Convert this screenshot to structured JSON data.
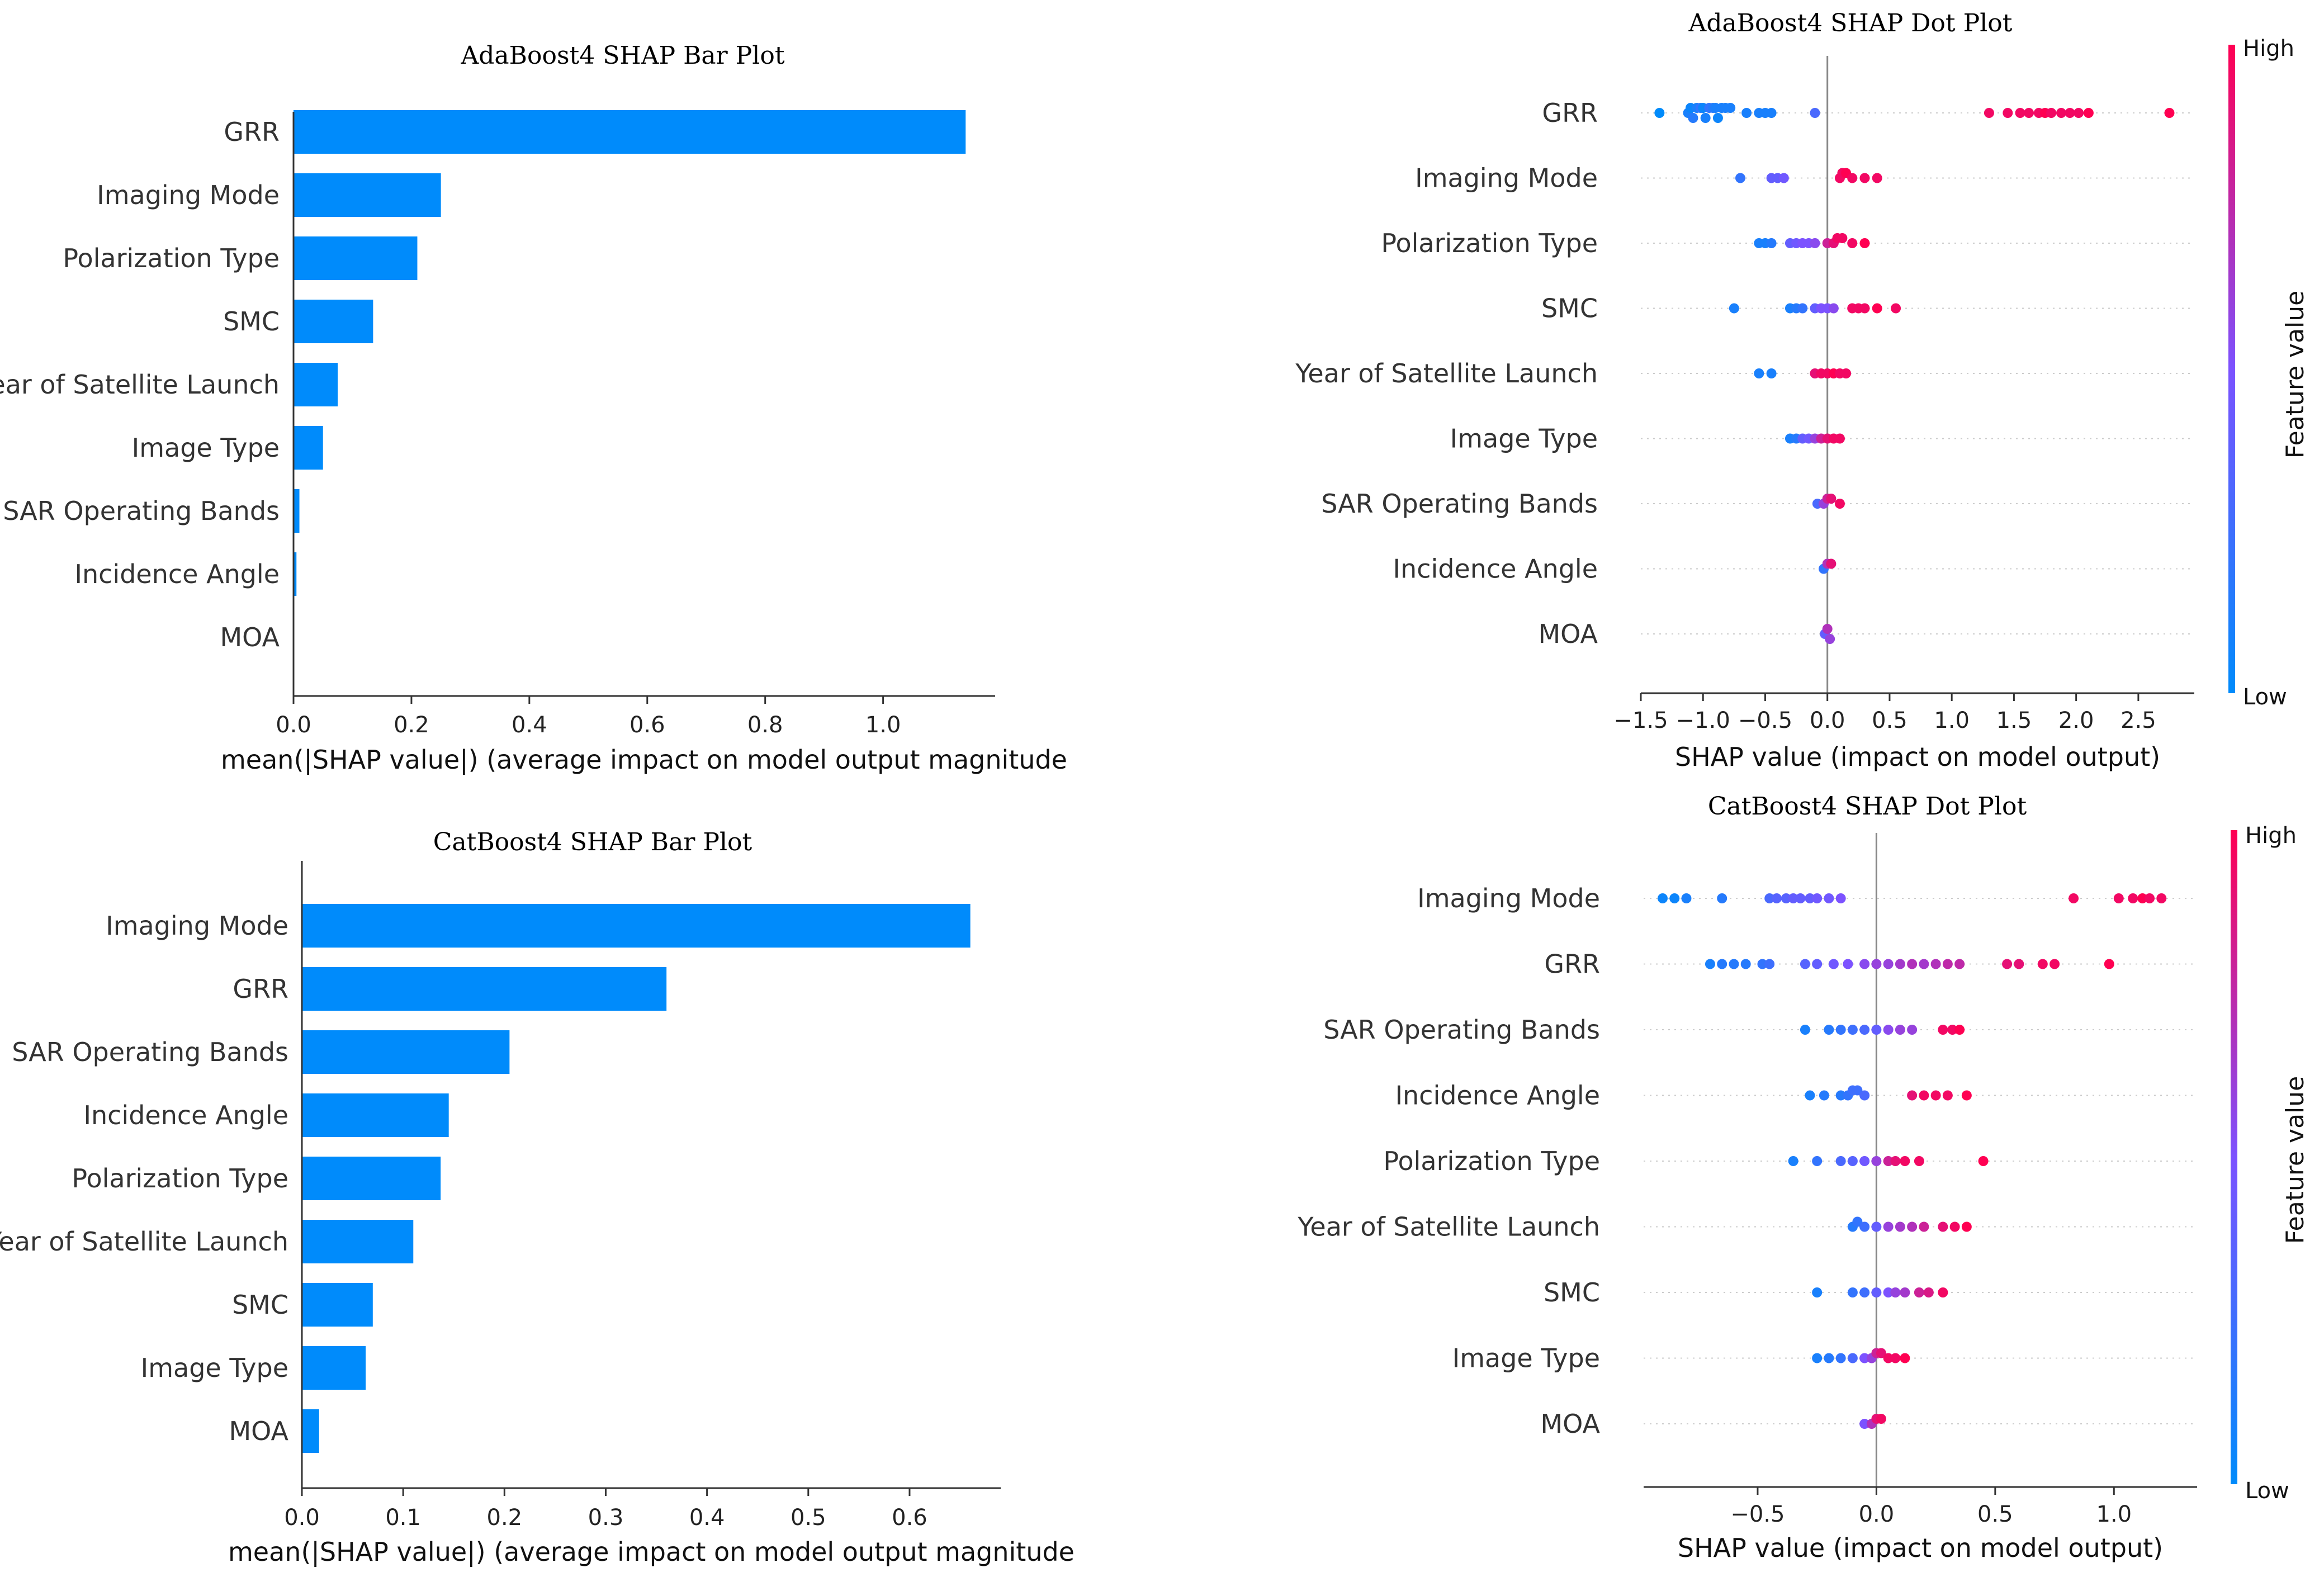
{
  "chart_data": [
    {
      "type": "bar",
      "title": "AdaBoost4 SHAP Bar Plot",
      "xlabel": "mean(|SHAP value|) (average impact on model output magnitude",
      "ylabel": "",
      "xlim": [
        0,
        1.19
      ],
      "xticks": [
        0.0,
        0.2,
        0.4,
        0.6,
        0.8,
        1.0
      ],
      "xtick_labels": [
        "0.0",
        "0.2",
        "0.4",
        "0.6",
        "0.8",
        "1.0"
      ],
      "categories": [
        "GRR",
        "Imaging Mode",
        "Polarization Type",
        "SMC",
        "Year of Satellite Launch",
        "Image Type",
        "SAR Operating Bands",
        "Incidence Angle",
        "MOA"
      ],
      "values": [
        1.14,
        0.25,
        0.21,
        0.135,
        0.075,
        0.05,
        0.01,
        0.005,
        0.0
      ],
      "bar_color": "#008bfb"
    },
    {
      "type": "scatter",
      "subtype": "beeswarm",
      "title": "AdaBoost4 SHAP Dot Plot",
      "xlabel": "SHAP value (impact on model output)",
      "xlim": [
        -1.5,
        2.95
      ],
      "xticks": [
        -1.5,
        -1.0,
        -0.5,
        0.0,
        0.5,
        1.0,
        1.5,
        2.0,
        2.5
      ],
      "xtick_labels": [
        "−1.5",
        "−1.0",
        "−0.5",
        "0.0",
        "0.5",
        "1.0",
        "1.5",
        "2.0",
        "2.5"
      ],
      "categories": [
        "GRR",
        "Imaging Mode",
        "Polarization Type",
        "SMC",
        "Year of Satellite Launch",
        "Image Type",
        "SAR Operating Bands",
        "Incidence Angle",
        "MOA"
      ],
      "series": [
        {
          "name": "GRR",
          "points": [
            [
              -1.35,
              0.0
            ],
            [
              -1.12,
              0.1
            ],
            [
              -1.1,
              0.05
            ],
            [
              -1.08,
              0.15
            ],
            [
              -1.05,
              0.1
            ],
            [
              -1.02,
              0.2
            ],
            [
              -1.0,
              0.05
            ],
            [
              -0.98,
              0.1
            ],
            [
              -0.95,
              0.2
            ],
            [
              -0.92,
              0.15
            ],
            [
              -0.9,
              0.1
            ],
            [
              -0.88,
              0.05
            ],
            [
              -0.85,
              0.1
            ],
            [
              -0.82,
              0.1
            ],
            [
              -0.78,
              0.1
            ],
            [
              -0.65,
              0.1
            ],
            [
              -0.55,
              0.1
            ],
            [
              -0.5,
              0.1
            ],
            [
              -0.45,
              0.1
            ],
            [
              -0.1,
              0.3
            ],
            [
              1.3,
              0.95
            ],
            [
              1.45,
              0.95
            ],
            [
              1.55,
              0.95
            ],
            [
              1.62,
              0.95
            ],
            [
              1.7,
              0.95
            ],
            [
              1.75,
              1.0
            ],
            [
              1.8,
              0.95
            ],
            [
              1.88,
              0.95
            ],
            [
              1.95,
              0.95
            ],
            [
              2.02,
              0.95
            ],
            [
              2.1,
              1.0
            ],
            [
              2.75,
              1.0
            ]
          ]
        },
        {
          "name": "Imaging Mode",
          "points": [
            [
              -0.7,
              0.2
            ],
            [
              -0.45,
              0.4
            ],
            [
              -0.4,
              0.4
            ],
            [
              -0.35,
              0.45
            ],
            [
              0.1,
              0.95
            ],
            [
              0.12,
              0.95
            ],
            [
              0.15,
              1.0
            ],
            [
              0.2,
              0.95
            ],
            [
              0.3,
              0.95
            ],
            [
              0.4,
              0.95
            ]
          ]
        },
        {
          "name": "Polarization Type",
          "points": [
            [
              -0.55,
              0.1
            ],
            [
              -0.5,
              0.1
            ],
            [
              -0.45,
              0.15
            ],
            [
              -0.3,
              0.4
            ],
            [
              -0.25,
              0.45
            ],
            [
              -0.2,
              0.5
            ],
            [
              -0.15,
              0.5
            ],
            [
              -0.1,
              0.55
            ],
            [
              0.0,
              0.8
            ],
            [
              0.05,
              0.9
            ],
            [
              0.08,
              0.95
            ],
            [
              0.12,
              0.95
            ],
            [
              0.2,
              0.95
            ],
            [
              0.3,
              1.0
            ]
          ]
        },
        {
          "name": "SMC",
          "points": [
            [
              -0.75,
              0.1
            ],
            [
              -0.3,
              0.1
            ],
            [
              -0.25,
              0.15
            ],
            [
              -0.2,
              0.2
            ],
            [
              -0.1,
              0.4
            ],
            [
              -0.05,
              0.5
            ],
            [
              0.0,
              0.5
            ],
            [
              0.05,
              0.55
            ],
            [
              0.2,
              0.95
            ],
            [
              0.25,
              0.95
            ],
            [
              0.3,
              0.95
            ],
            [
              0.4,
              1.0
            ],
            [
              0.55,
              0.95
            ]
          ]
        },
        {
          "name": "Year of Satellite Launch",
          "points": [
            [
              -0.55,
              0.1
            ],
            [
              -0.45,
              0.1
            ],
            [
              -0.1,
              0.9
            ],
            [
              -0.05,
              0.95
            ],
            [
              0.0,
              0.95
            ],
            [
              0.05,
              1.0
            ],
            [
              0.1,
              0.95
            ],
            [
              0.15,
              0.95
            ]
          ]
        },
        {
          "name": "Image Type",
          "points": [
            [
              -0.3,
              0.1
            ],
            [
              -0.25,
              0.15
            ],
            [
              -0.2,
              0.4
            ],
            [
              -0.15,
              0.45
            ],
            [
              -0.1,
              0.6
            ],
            [
              -0.05,
              0.8
            ],
            [
              0.0,
              0.9
            ],
            [
              0.05,
              0.95
            ],
            [
              0.1,
              0.95
            ]
          ]
        },
        {
          "name": "SAR Operating Bands",
          "points": [
            [
              -0.08,
              0.3
            ],
            [
              -0.03,
              0.6
            ],
            [
              0.0,
              0.8
            ],
            [
              0.03,
              0.9
            ],
            [
              0.1,
              0.95
            ]
          ]
        },
        {
          "name": "Incidence Angle",
          "points": [
            [
              -0.03,
              0.2
            ],
            [
              0.0,
              0.7
            ],
            [
              0.03,
              0.9
            ]
          ]
        },
        {
          "name": "MOA",
          "points": [
            [
              -0.02,
              0.4
            ],
            [
              0.0,
              0.7
            ],
            [
              0.02,
              0.6
            ]
          ]
        }
      ],
      "colorbar": {
        "label": "Feature value",
        "high_label": "High",
        "low_label": "Low",
        "low_color": "#008bfb",
        "mid_color": "#7c52ff",
        "high_color": "#ff0052"
      }
    },
    {
      "type": "bar",
      "title": "CatBoost4 SHAP Bar Plot",
      "xlabel": "mean(|SHAP value|) (average impact on model output magnitude",
      "ylabel": "",
      "xlim": [
        0,
        0.69
      ],
      "xticks": [
        0.0,
        0.1,
        0.2,
        0.3,
        0.4,
        0.5,
        0.6
      ],
      "xtick_labels": [
        "0.0",
        "0.1",
        "0.2",
        "0.3",
        "0.4",
        "0.5",
        "0.6"
      ],
      "categories": [
        "Imaging Mode",
        "GRR",
        "SAR Operating Bands",
        "Incidence Angle",
        "Polarization Type",
        "Year of Satellite Launch",
        "SMC",
        "Image Type",
        "MOA"
      ],
      "values": [
        0.66,
        0.36,
        0.205,
        0.145,
        0.137,
        0.11,
        0.07,
        0.063,
        0.017
      ],
      "bar_color": "#008bfb"
    },
    {
      "type": "scatter",
      "subtype": "beeswarm",
      "title": "CatBoost4 SHAP Dot Plot",
      "xlabel": "SHAP value (impact on model output)",
      "xlim": [
        -0.98,
        1.35
      ],
      "xticks": [
        -0.5,
        0.0,
        0.5,
        1.0
      ],
      "xtick_labels": [
        "−0.5",
        "0.0",
        "0.5",
        "1.0"
      ],
      "categories": [
        "Imaging Mode",
        "GRR",
        "SAR Operating Bands",
        "Incidence Angle",
        "Polarization Type",
        "Year of Satellite Launch",
        "SMC",
        "Image Type",
        "MOA"
      ],
      "series": [
        {
          "name": "Imaging Mode",
          "points": [
            [
              -0.9,
              0.05
            ],
            [
              -0.85,
              0.05
            ],
            [
              -0.8,
              0.1
            ],
            [
              -0.65,
              0.15
            ],
            [
              -0.45,
              0.3
            ],
            [
              -0.42,
              0.35
            ],
            [
              -0.38,
              0.35
            ],
            [
              -0.35,
              0.4
            ],
            [
              -0.32,
              0.4
            ],
            [
              -0.28,
              0.4
            ],
            [
              -0.25,
              0.45
            ],
            [
              -0.2,
              0.45
            ],
            [
              -0.15,
              0.5
            ],
            [
              0.83,
              0.95
            ],
            [
              1.02,
              0.95
            ],
            [
              1.08,
              0.95
            ],
            [
              1.12,
              1.0
            ],
            [
              1.15,
              0.95
            ],
            [
              1.2,
              0.95
            ]
          ]
        },
        {
          "name": "GRR",
          "points": [
            [
              -0.7,
              0.1
            ],
            [
              -0.65,
              0.15
            ],
            [
              -0.6,
              0.15
            ],
            [
              -0.55,
              0.15
            ],
            [
              -0.48,
              0.2
            ],
            [
              -0.45,
              0.25
            ],
            [
              -0.3,
              0.35
            ],
            [
              -0.25,
              0.4
            ],
            [
              -0.18,
              0.45
            ],
            [
              -0.12,
              0.5
            ],
            [
              -0.05,
              0.55
            ],
            [
              0.0,
              0.6
            ],
            [
              0.05,
              0.6
            ],
            [
              0.1,
              0.65
            ],
            [
              0.15,
              0.7
            ],
            [
              0.2,
              0.65
            ],
            [
              0.25,
              0.7
            ],
            [
              0.3,
              0.75
            ],
            [
              0.35,
              0.75
            ],
            [
              0.55,
              0.9
            ],
            [
              0.6,
              0.9
            ],
            [
              0.7,
              0.95
            ],
            [
              0.75,
              0.95
            ],
            [
              0.98,
              1.0
            ]
          ]
        },
        {
          "name": "SAR Operating Bands",
          "points": [
            [
              -0.3,
              0.1
            ],
            [
              -0.2,
              0.15
            ],
            [
              -0.15,
              0.2
            ],
            [
              -0.1,
              0.25
            ],
            [
              -0.05,
              0.3
            ],
            [
              0.0,
              0.4
            ],
            [
              0.05,
              0.55
            ],
            [
              0.1,
              0.6
            ],
            [
              0.15,
              0.6
            ],
            [
              0.28,
              0.95
            ],
            [
              0.32,
              0.95
            ],
            [
              0.35,
              1.0
            ]
          ]
        },
        {
          "name": "Incidence Angle",
          "points": [
            [
              -0.28,
              0.1
            ],
            [
              -0.22,
              0.15
            ],
            [
              -0.15,
              0.15
            ],
            [
              -0.12,
              0.2
            ],
            [
              -0.1,
              0.25
            ],
            [
              -0.08,
              0.25
            ],
            [
              -0.05,
              0.3
            ],
            [
              0.15,
              0.9
            ],
            [
              0.2,
              0.95
            ],
            [
              0.25,
              0.95
            ],
            [
              0.3,
              0.95
            ],
            [
              0.38,
              1.0
            ]
          ]
        },
        {
          "name": "Polarization Type",
          "points": [
            [
              -0.35,
              0.1
            ],
            [
              -0.25,
              0.2
            ],
            [
              -0.15,
              0.3
            ],
            [
              -0.1,
              0.35
            ],
            [
              -0.05,
              0.45
            ],
            [
              0.0,
              0.6
            ],
            [
              0.05,
              0.8
            ],
            [
              0.08,
              0.9
            ],
            [
              0.12,
              0.95
            ],
            [
              0.18,
              0.95
            ],
            [
              0.45,
              1.0
            ]
          ]
        },
        {
          "name": "Year of Satellite Launch",
          "points": [
            [
              -0.1,
              0.15
            ],
            [
              -0.08,
              0.2
            ],
            [
              -0.05,
              0.25
            ],
            [
              0.0,
              0.4
            ],
            [
              0.05,
              0.6
            ],
            [
              0.1,
              0.65
            ],
            [
              0.15,
              0.7
            ],
            [
              0.2,
              0.8
            ],
            [
              0.28,
              0.9
            ],
            [
              0.33,
              0.95
            ],
            [
              0.38,
              1.0
            ]
          ]
        },
        {
          "name": "SMC",
          "points": [
            [
              -0.25,
              0.1
            ],
            [
              -0.1,
              0.2
            ],
            [
              -0.05,
              0.25
            ],
            [
              0.0,
              0.4
            ],
            [
              0.05,
              0.5
            ],
            [
              0.08,
              0.6
            ],
            [
              0.12,
              0.65
            ],
            [
              0.18,
              0.8
            ],
            [
              0.22,
              0.85
            ],
            [
              0.28,
              0.95
            ]
          ]
        },
        {
          "name": "Image Type",
          "points": [
            [
              -0.25,
              0.1
            ],
            [
              -0.2,
              0.15
            ],
            [
              -0.15,
              0.2
            ],
            [
              -0.1,
              0.3
            ],
            [
              -0.05,
              0.5
            ],
            [
              -0.02,
              0.6
            ],
            [
              0.0,
              0.8
            ],
            [
              0.02,
              0.9
            ],
            [
              0.05,
              0.95
            ],
            [
              0.08,
              0.95
            ],
            [
              0.12,
              1.0
            ]
          ]
        },
        {
          "name": "MOA",
          "points": [
            [
              -0.05,
              0.5
            ],
            [
              -0.02,
              0.7
            ],
            [
              0.0,
              0.9
            ],
            [
              0.02,
              0.95
            ]
          ]
        }
      ],
      "colorbar": {
        "label": "Feature value",
        "high_label": "High",
        "low_label": "Low",
        "low_color": "#008bfb",
        "mid_color": "#7c52ff",
        "high_color": "#ff0052"
      }
    }
  ]
}
